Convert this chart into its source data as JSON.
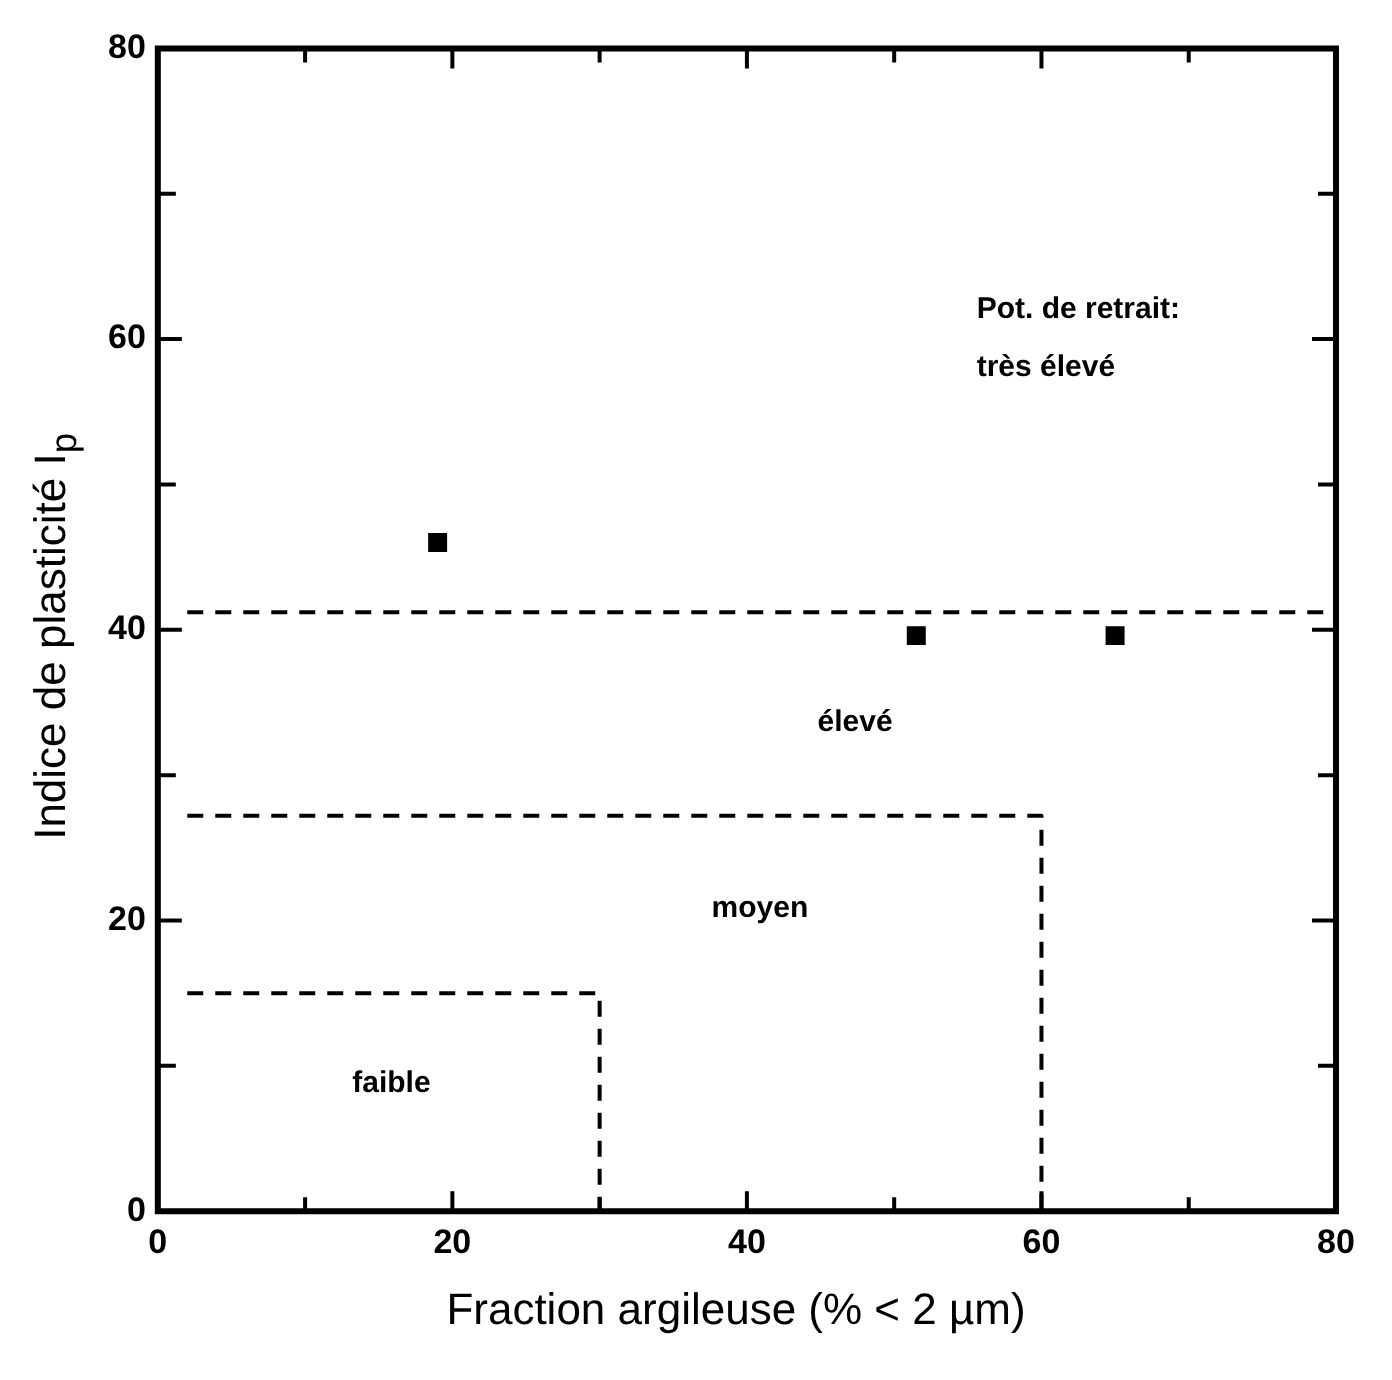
{
  "chart_data": {
    "type": "scatter",
    "xlabel": "Fraction argileuse (% < 2 µm)",
    "ylabel": "Indice de plasticité I$_{p}$",
    "xlim": [
      0,
      80
    ],
    "ylim": [
      0,
      80
    ],
    "xticks": [
      0,
      {
        "value": 10,
        "label": null
      },
      20,
      {
        "value": 30,
        "label": null
      },
      40,
      {
        "value": 50,
        "label": null
      },
      60,
      {
        "value": 70,
        "label": null
      },
      80
    ],
    "yticks": [
      0,
      {
        "value": 10,
        "label": null
      },
      20,
      {
        "value": 30,
        "label": null
      },
      40,
      {
        "value": 50,
        "label": null
      },
      60,
      {
        "value": 70,
        "label": null
      },
      80
    ],
    "grid": false,
    "legend": false,
    "marker": "square",
    "series": [
      {
        "color": "#000000",
        "x": [
          19,
          51.5,
          65
        ],
        "values": [
          46,
          39.6,
          39.6
        ]
      },
      {
        "type": "line",
        "color": "#000000",
        "line_style": "dashed",
        "marker": "none",
        "x": [
          2,
          80
        ],
        "values": [
          41.2,
          41.2
        ]
      },
      {
        "type": "line",
        "color": "#000000",
        "line_style": "dashed",
        "marker": "none",
        "x": [
          2,
          60,
          60
        ],
        "values": [
          27.2,
          27.2,
          0
        ]
      },
      {
        "type": "line",
        "color": "#000000",
        "line_style": "dashed",
        "marker": "none",
        "x": [
          2,
          30,
          30
        ],
        "values": [
          15,
          15,
          0
        ]
      }
    ],
    "annotations": [
      "Pot. de retrait:",
      "très élevé",
      "élevé",
      "moyen",
      "faible"
    ]
  }
}
